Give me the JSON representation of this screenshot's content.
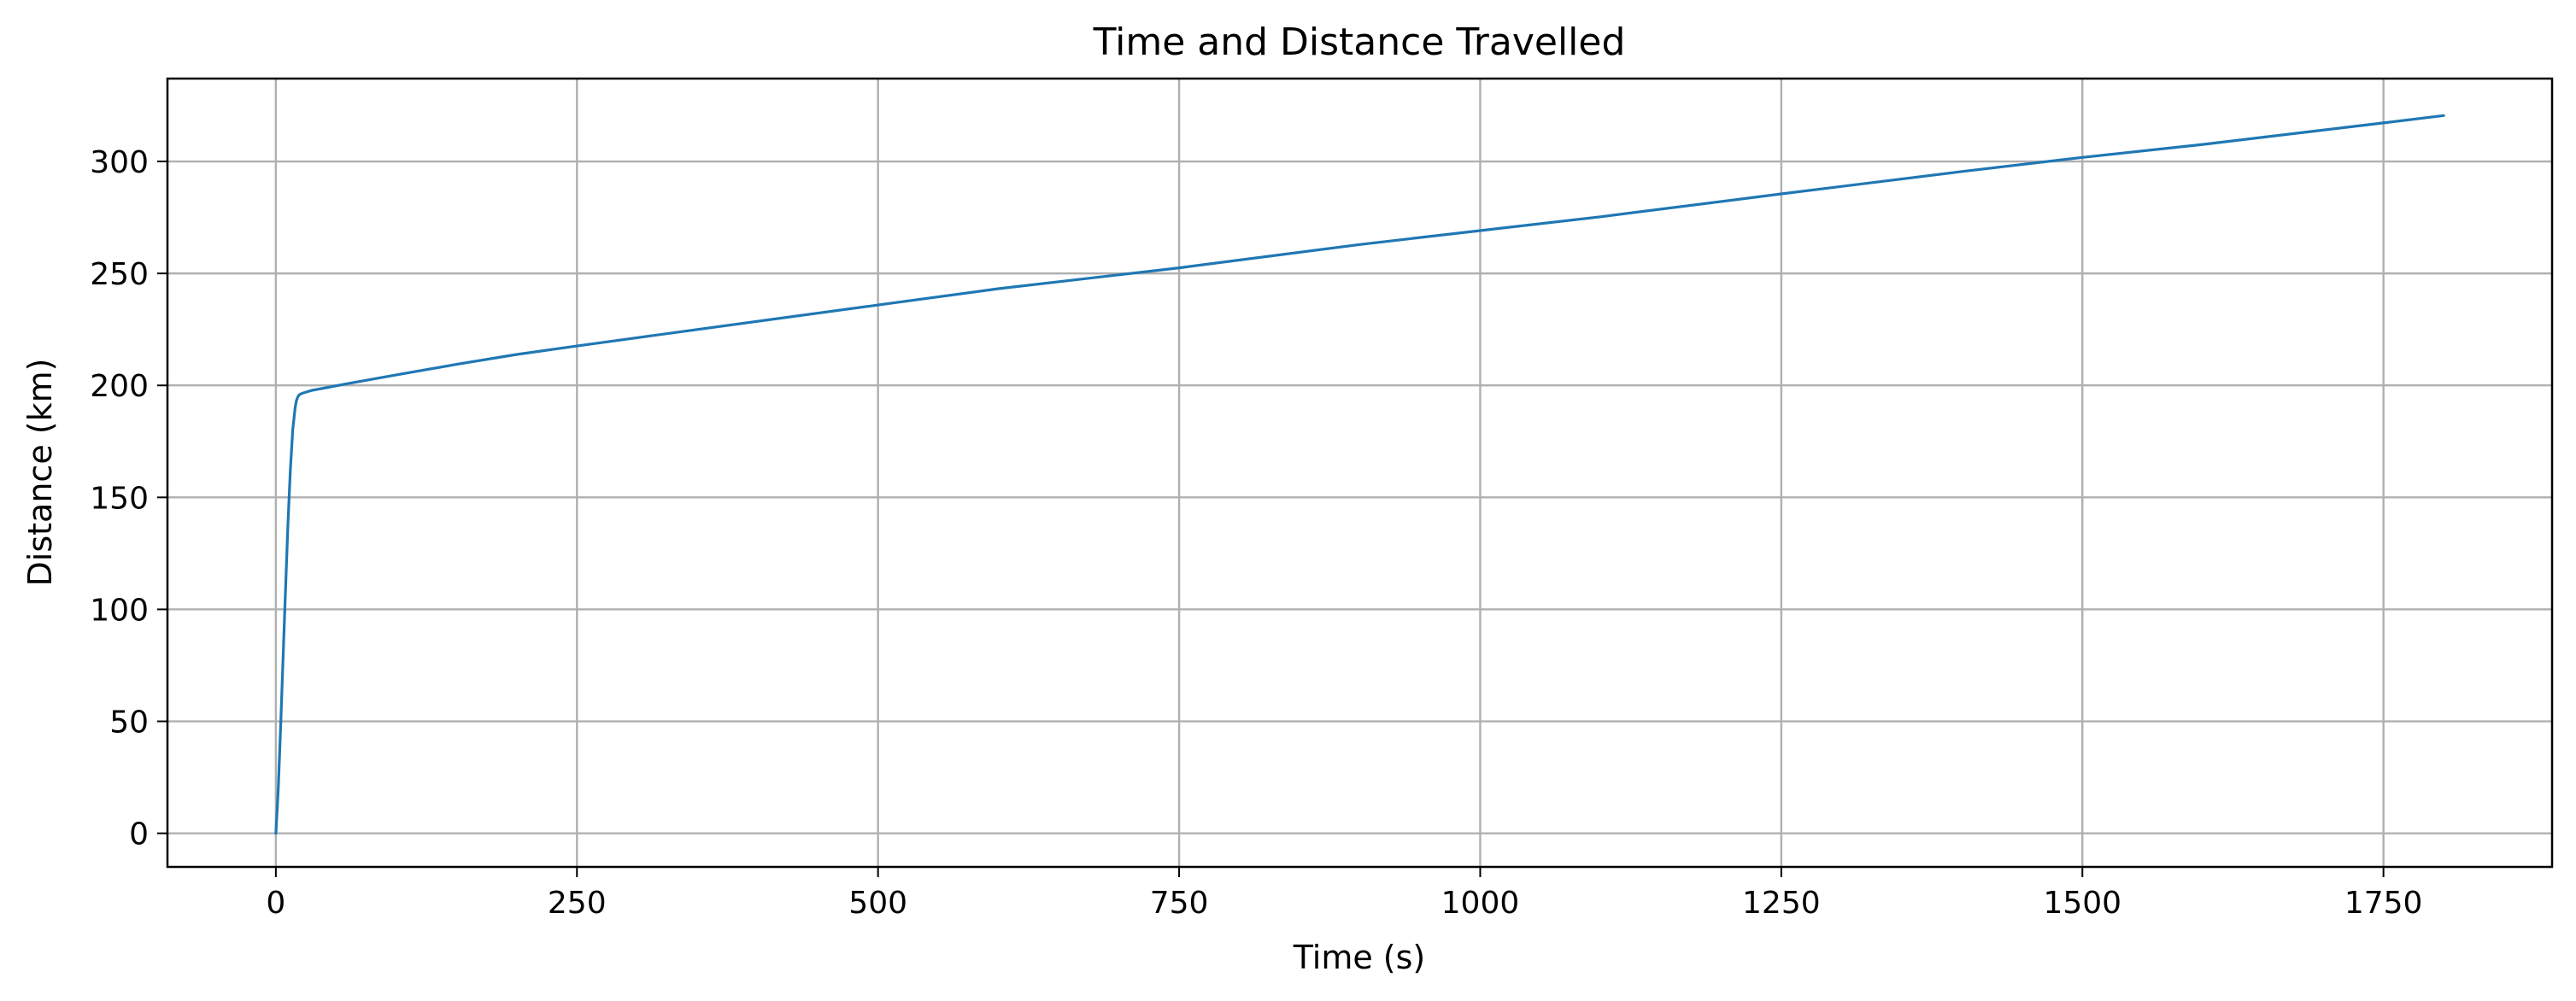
{
  "chart_data": {
    "type": "line",
    "title": "Time and Distance Travelled",
    "xlabel": "Time (s)",
    "ylabel": "Distance (km)",
    "xlim": [
      -90,
      1890
    ],
    "ylim": [
      -15,
      337
    ],
    "xticks": [
      0,
      250,
      500,
      750,
      1000,
      1250,
      1500,
      1750
    ],
    "yticks": [
      0,
      50,
      100,
      150,
      200,
      250,
      300
    ],
    "grid": true,
    "series": [
      {
        "color": "#1f77b4",
        "x": [
          0,
          2,
          4,
          6,
          8,
          10,
          12,
          14,
          16,
          17,
          18,
          19,
          20,
          22,
          25,
          30,
          40,
          60,
          100,
          150,
          200,
          250,
          300,
          400,
          500,
          600,
          750,
          900,
          1000,
          1100,
          1250,
          1400,
          1500,
          1600,
          1750,
          1800
        ],
        "y": [
          0,
          20,
          48,
          78,
          108,
          138,
          162,
          180,
          190,
          193,
          194.5,
          195.5,
          196,
          196.5,
          197,
          197.8,
          198.8,
          200.8,
          204.7,
          209.4,
          213.8,
          217.6,
          221.3,
          228.6,
          235.9,
          243.2,
          252.5,
          262.9,
          269.1,
          275.3,
          285.5,
          295.5,
          301.8,
          307.6,
          317.2,
          320.5
        ]
      }
    ]
  }
}
